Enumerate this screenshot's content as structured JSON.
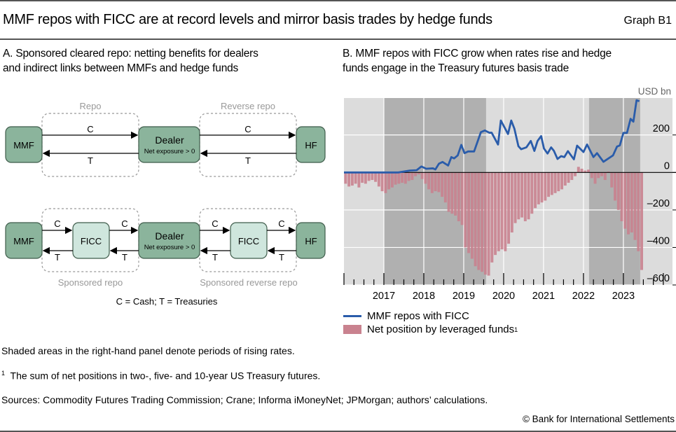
{
  "header": {
    "title": "MMF repos with FICC are at record levels and mirror basis trades by hedge funds",
    "graph_number": "Graph B1"
  },
  "panel_a": {
    "title_line1": "A. Sponsored cleared repo: netting benefits for dealers",
    "title_line2": "and indirect links between MMFs and hedge funds",
    "top_row": {
      "mmf": "MMF",
      "dealer": "Dealer",
      "dealer_sub": "Net exposure > 0",
      "hf": "HF",
      "left_group": "Repo",
      "right_group": "Reverse repo",
      "cash": "C",
      "treasuries": "T"
    },
    "bottom_row": {
      "mmf": "MMF",
      "ficc_left": "FICC",
      "dealer": "Dealer",
      "dealer_sub": "Net exposure > 0",
      "ficc_right": "FICC",
      "hf": "HF",
      "left_group": "Sponsored repo",
      "right_group": "Sponsored reverse repo",
      "cash": "C",
      "treasuries": "T"
    },
    "key": "C = Cash; T = Treasuries",
    "colors": {
      "entity": "#8bb49c",
      "ficc": "#cfe6dd",
      "border": "#3f5c4b"
    }
  },
  "panel_b": {
    "title_line1": "B. MMF repos with FICC grow when rates rise and hedge",
    "title_line2": "funds engage in the Treasury futures basis trade"
  },
  "chart_data": {
    "type": "bar+line",
    "unit": "USD bn",
    "xlim": [
      2016.0,
      2024.23
    ],
    "ylim": [
      -600,
      397
    ],
    "x_tick_labels": [
      "2017",
      "2018",
      "2019",
      "2020",
      "2021",
      "2022",
      "2023"
    ],
    "y_ticks": [
      200,
      0,
      -200,
      -400,
      -600
    ],
    "y_tick_labels": [
      "200",
      "0",
      "–200",
      "–400",
      "–600"
    ],
    "y_axis_side": "right",
    "grid": true,
    "legend_placement": "bottom",
    "shaded_periods": [
      [
        2017.0,
        2019.56
      ],
      [
        2022.14,
        2023.42
      ]
    ],
    "colors": {
      "background": "#dcdcdc",
      "shaded": "#b0b0b0",
      "line": "#2a5caa",
      "bar": "#c9828f",
      "grid": "#ffffff"
    },
    "series": [
      {
        "name": "MMF repos with FICC",
        "type": "line",
        "x": [
          2016.0,
          2017.36,
          2017.65,
          2017.82,
          2017.94,
          2018.06,
          2018.23,
          2018.29,
          2018.38,
          2018.47,
          2018.61,
          2018.69,
          2018.76,
          2018.85,
          2018.94,
          2019.02,
          2019.11,
          2019.26,
          2019.43,
          2019.53,
          2019.64,
          2019.7,
          2019.86,
          2019.93,
          2020.11,
          2020.19,
          2020.27,
          2020.37,
          2020.44,
          2020.57,
          2020.68,
          2020.77,
          2020.85,
          2020.94,
          2021.01,
          2021.1,
          2021.19,
          2021.26,
          2021.35,
          2021.44,
          2021.52,
          2021.61,
          2021.76,
          2021.84,
          2022.0,
          2022.09,
          2022.25,
          2022.34,
          2022.5,
          2022.74,
          2022.84,
          2022.91,
          2023.0,
          2023.09,
          2023.18,
          2023.25,
          2023.33,
          2023.4
        ],
        "y": [
          0,
          0,
          10,
          12,
          32,
          20,
          22,
          16,
          47,
          56,
          37,
          82,
          75,
          91,
          147,
          103,
          112,
          112,
          215,
          224,
          212,
          212,
          149,
          277,
          205,
          277,
          233,
          140,
          124,
          134,
          168,
          115,
          168,
          194,
          128,
          101,
          134,
          115,
          72,
          87,
          82,
          114,
          70,
          143,
          109,
          149,
          82,
          103,
          57,
          91,
          138,
          144,
          211,
          211,
          286,
          271,
          385,
          380
        ]
      },
      {
        "name": "Net position by leveraged funds",
        "name_superscript": "1",
        "type": "bar",
        "x_start": "2016-01",
        "frequency": "monthly",
        "values": [
          -60,
          -75,
          -70,
          -60,
          -80,
          -55,
          -60,
          -45,
          -40,
          -50,
          -75,
          -100,
          -110,
          -90,
          -80,
          -65,
          -60,
          -55,
          -60,
          -45,
          -40,
          -20,
          -10,
          -35,
          -60,
          -90,
          -110,
          -100,
          -105,
          -130,
          -160,
          -210,
          -220,
          -230,
          -260,
          -280,
          -400,
          -430,
          -460,
          -500,
          -520,
          -530,
          -545,
          -550,
          -480,
          -440,
          -420,
          -410,
          -420,
          -380,
          -320,
          -270,
          -250,
          -240,
          -260,
          -250,
          -220,
          -190,
          -170,
          -160,
          -150,
          -130,
          -120,
          -110,
          -100,
          -90,
          -70,
          -55,
          -40,
          -20,
          30,
          20,
          10,
          15,
          -30,
          -60,
          -30,
          -20,
          -40,
          5,
          -80,
          -150,
          -200,
          -260,
          -300,
          -330,
          -320,
          -360,
          -420,
          -520
        ]
      }
    ]
  },
  "legend": {
    "line_label": "MMF repos with FICC",
    "bar_label": "Net position by leveraged funds",
    "bar_superscript": "1"
  },
  "notes": {
    "shading": "Shaded areas in the right-hand panel denote periods of rising rates.",
    "footnote_marker": "1",
    "footnote": "The sum of net positions in two-, five- and 10-year US Treasury futures.",
    "sources": "Sources: Commodity Futures Trading Commission; Crane; Informa iMoneyNet; JPMorgan; authors’ calculations.",
    "copyright": "© Bank for International Settlements"
  }
}
